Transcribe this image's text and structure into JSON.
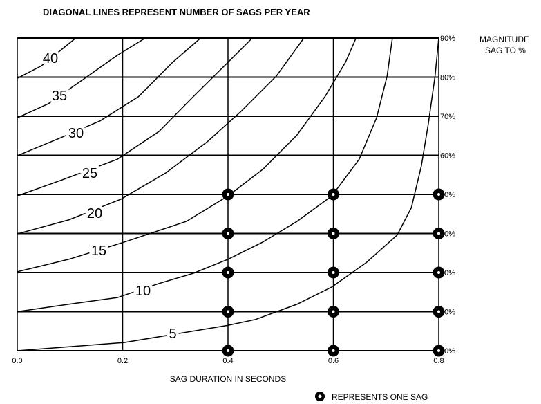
{
  "chart_data": {
    "type": "line",
    "title": "DIAGONAL LINES REPRESENT NUMBER OF SAGS PER YEAR",
    "x_label": "SAG DURATION IN SECONDS",
    "y_label_lines": [
      "MAGNITUDE",
      "SAG TO %"
    ],
    "xlim": [
      0,
      0.8
    ],
    "ylim": [
      10,
      90
    ],
    "xticks": [
      {
        "value": 0,
        "label": "0.0"
      },
      0.2,
      0.4,
      0.6,
      0.8
    ],
    "yticks": [
      {
        "value": 10,
        "label": "10%"
      },
      {
        "value": 20,
        "label": "20%"
      },
      {
        "value": 30,
        "label": "30%"
      },
      {
        "value": 40,
        "label": "40%"
      },
      {
        "value": 50,
        "label": "50%"
      },
      {
        "value": 60,
        "label": "60%"
      },
      {
        "value": 70,
        "label": "70%"
      },
      {
        "value": 80,
        "label": "80%"
      },
      {
        "value": 90,
        "label": "90%"
      }
    ],
    "grid": true,
    "series": [
      {
        "name": "5",
        "color": "#000000",
        "x": [
          0,
          0.203,
          0.4,
          0.452,
          0.531,
          0.597,
          0.662,
          0.721,
          0.748,
          0.767,
          0.78,
          0.793,
          0.8
        ],
        "values": [
          10,
          12.1,
          16.5,
          18,
          21.9,
          26.3,
          32.5,
          39.6,
          46.6,
          57.3,
          67.9,
          80.3,
          90
        ]
      },
      {
        "name": "10",
        "color": "#000000",
        "x": [
          0,
          0.098,
          0.19,
          0.269,
          0.334,
          0.4,
          0.466,
          0.531,
          0.597,
          0.649,
          0.682,
          0.702,
          0.712
        ],
        "values": [
          20,
          21.9,
          23.6,
          27.2,
          29.8,
          33.4,
          37.8,
          43.1,
          49.6,
          59,
          69.6,
          80.3,
          90
        ]
      },
      {
        "name": "15",
        "color": "#000000",
        "x": [
          0,
          0.098,
          0.203,
          0.321,
          0.4,
          0.466,
          0.531,
          0.584,
          0.623,
          0.643
        ],
        "values": [
          30.2,
          33.4,
          37.8,
          43.1,
          49.6,
          56.4,
          65.2,
          75,
          83.8,
          90
        ]
      },
      {
        "name": "20",
        "color": "#000000",
        "x": [
          0,
          0.098,
          0.197,
          0.282,
          0.361,
          0.426,
          0.492,
          0.544
        ],
        "values": [
          39.9,
          43.5,
          48.8,
          55.5,
          63.5,
          71.4,
          80.3,
          90
        ]
      },
      {
        "name": "25",
        "color": "#000000",
        "x": [
          0,
          0.085,
          0.19,
          0.269,
          0.334,
          0.4,
          0.446
        ],
        "values": [
          49.6,
          53.7,
          59,
          66.1,
          75,
          83.8,
          90
        ]
      },
      {
        "name": "30",
        "color": "#000000",
        "x": [
          0,
          0.079,
          0.157,
          0.23,
          0.295,
          0.348
        ],
        "values": [
          59.9,
          64.3,
          68.8,
          75,
          83.8,
          90
        ]
      },
      {
        "name": "35",
        "color": "#000000",
        "x": [
          0,
          0.059,
          0.125,
          0.19,
          0.243
        ],
        "values": [
          69.6,
          73.2,
          79.4,
          85.6,
          90
        ]
      },
      {
        "name": "40",
        "color": "#000000",
        "x": [
          0,
          0.046,
          0.111
        ],
        "values": [
          79.7,
          82.9,
          90
        ]
      },
      {
        "name": "REPRESENTS ONE SAG",
        "type": "scatter",
        "color": "#000000",
        "x": [
          0.4,
          0.4,
          0.4,
          0.4,
          0.4,
          0.6,
          0.6,
          0.6,
          0.6,
          0.6,
          0.8,
          0.8,
          0.8,
          0.8,
          0.8
        ],
        "values": [
          10,
          20,
          30,
          40,
          50,
          10,
          20,
          30,
          40,
          50,
          10,
          20,
          30,
          40,
          50
        ]
      }
    ]
  }
}
